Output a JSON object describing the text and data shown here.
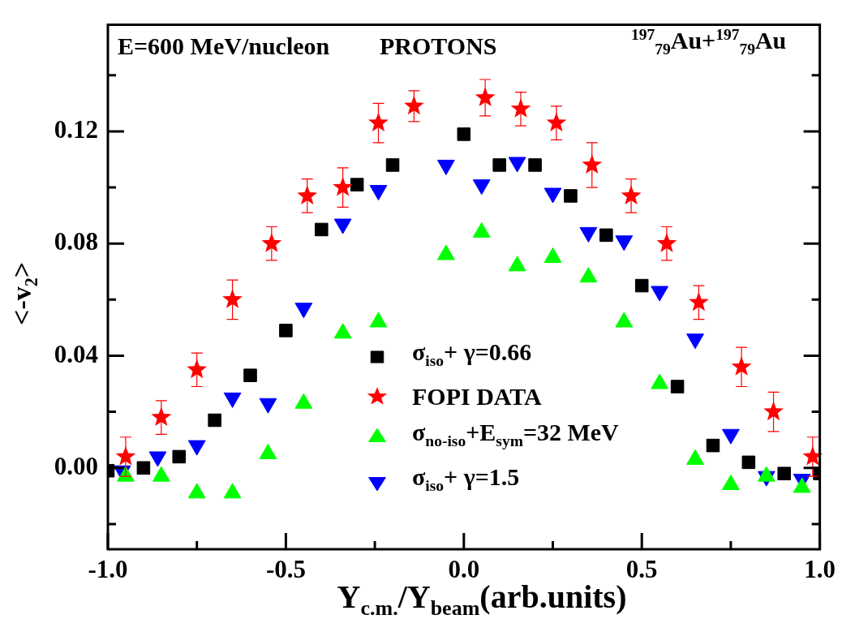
{
  "chart_data": {
    "type": "scatter",
    "annotations": [
      "E=600 MeV/nucleon",
      "PROTONS",
      "$^{197}$$_{79}$Au+$^{197}$$_{79}$Au"
    ],
    "xlabel": "Y$_{c.m.}$/Y$_{beam}$(arb.units)",
    "ylabel": "<-v$_{2}$>",
    "xlim": [
      -1.0,
      1.0
    ],
    "xticks": [
      {
        "value": -1.0,
        "label": "-1.0"
      },
      {
        "value": -0.75,
        "label": null
      },
      {
        "value": -0.5,
        "label": "-0.5"
      },
      {
        "value": -0.25,
        "label": null
      },
      {
        "value": 0,
        "label": "0.0"
      },
      {
        "value": 0.25,
        "label": null
      },
      {
        "value": 0.5,
        "label": "0.5"
      },
      {
        "value": 0.75,
        "label": null
      },
      {
        "value": 1.0,
        "label": "1.0"
      }
    ],
    "ylim": [
      -0.029,
      0.158
    ],
    "yticks": [
      {
        "value": -0.02,
        "label": null
      },
      {
        "value": 0,
        "label": "0.00"
      },
      {
        "value": 0.02,
        "label": null
      },
      {
        "value": 0.04,
        "label": "0.04"
      },
      {
        "value": 0.06,
        "label": null
      },
      {
        "value": 0.08,
        "label": "0.08"
      },
      {
        "value": 0.1,
        "label": null
      },
      {
        "value": 0.12,
        "label": "0.12"
      },
      {
        "value": 0.14,
        "label": null
      }
    ],
    "grid": false,
    "legend": "bottom",
    "series": [
      {
        "name": "σ$_{iso}$+ γ=0.66",
        "color": "#000000",
        "marker": "square",
        "x": [
          -1.0,
          -0.9,
          -0.8,
          -0.7,
          -0.6,
          -0.5,
          -0.4,
          -0.3,
          -0.2,
          0.0,
          0.1,
          0.2,
          0.3,
          0.4,
          0.5,
          0.6,
          0.7,
          0.8,
          0.9,
          1.0
        ],
        "values": [
          -0.001,
          0.0,
          0.004,
          0.017,
          0.033,
          0.049,
          0.085,
          0.101,
          0.108,
          0.119,
          0.108,
          0.108,
          0.097,
          0.083,
          0.065,
          0.029,
          0.008,
          0.002,
          -0.002,
          -0.002
        ]
      },
      {
        "name": "FOPI DATA",
        "color": "#ff0000",
        "marker": "star",
        "x": [
          -0.95,
          -0.85,
          -0.75,
          -0.65,
          -0.54,
          -0.44,
          -0.34,
          -0.24,
          -0.14,
          0.06,
          0.16,
          0.26,
          0.36,
          0.47,
          0.57,
          0.66,
          0.78,
          0.87,
          0.98
        ],
        "values": [
          0.004,
          0.018,
          0.035,
          0.06,
          0.08,
          0.097,
          0.1,
          0.123,
          0.129,
          0.132,
          0.128,
          0.123,
          0.108,
          0.097,
          0.08,
          0.059,
          0.036,
          0.02,
          0.004
        ],
        "errors": [
          0.007,
          0.006,
          0.006,
          0.007,
          0.006,
          0.006,
          0.007,
          0.007,
          0.0055,
          0.0065,
          0.006,
          0.006,
          0.008,
          0.006,
          0.006,
          0.006,
          0.007,
          0.007,
          0.007
        ]
      },
      {
        "name": "σ$_{no-iso}$+E$_{sym}$=32 MeV",
        "color": "#00ff00",
        "marker": "triangle",
        "x": [
          -0.95,
          -0.85,
          -0.75,
          -0.65,
          -0.55,
          -0.45,
          -0.34,
          -0.24,
          -0.05,
          0.05,
          0.15,
          0.25,
          0.35,
          0.45,
          0.55,
          0.65,
          0.75,
          0.85,
          0.95
        ],
        "values": [
          -0.003,
          -0.003,
          -0.009,
          -0.009,
          0.005,
          0.023,
          0.048,
          0.052,
          0.076,
          0.084,
          0.072,
          0.075,
          0.068,
          0.052,
          0.03,
          0.003,
          -0.006,
          -0.003,
          -0.007
        ]
      },
      {
        "name": "σ$_{iso}$+ γ=1.5",
        "color": "#0000ff",
        "marker": "triangle-down",
        "x": [
          -0.96,
          -0.86,
          -0.75,
          -0.65,
          -0.55,
          -0.45,
          -0.34,
          -0.24,
          -0.05,
          0.05,
          0.15,
          0.25,
          0.35,
          0.45,
          0.55,
          0.65,
          0.75,
          0.85,
          0.95
        ],
        "values": [
          -0.001,
          0.004,
          0.008,
          0.025,
          0.023,
          0.057,
          0.087,
          0.099,
          0.108,
          0.101,
          0.109,
          0.098,
          0.084,
          0.081,
          0.063,
          0.046,
          0.012,
          -0.003,
          -0.004
        ]
      }
    ]
  }
}
